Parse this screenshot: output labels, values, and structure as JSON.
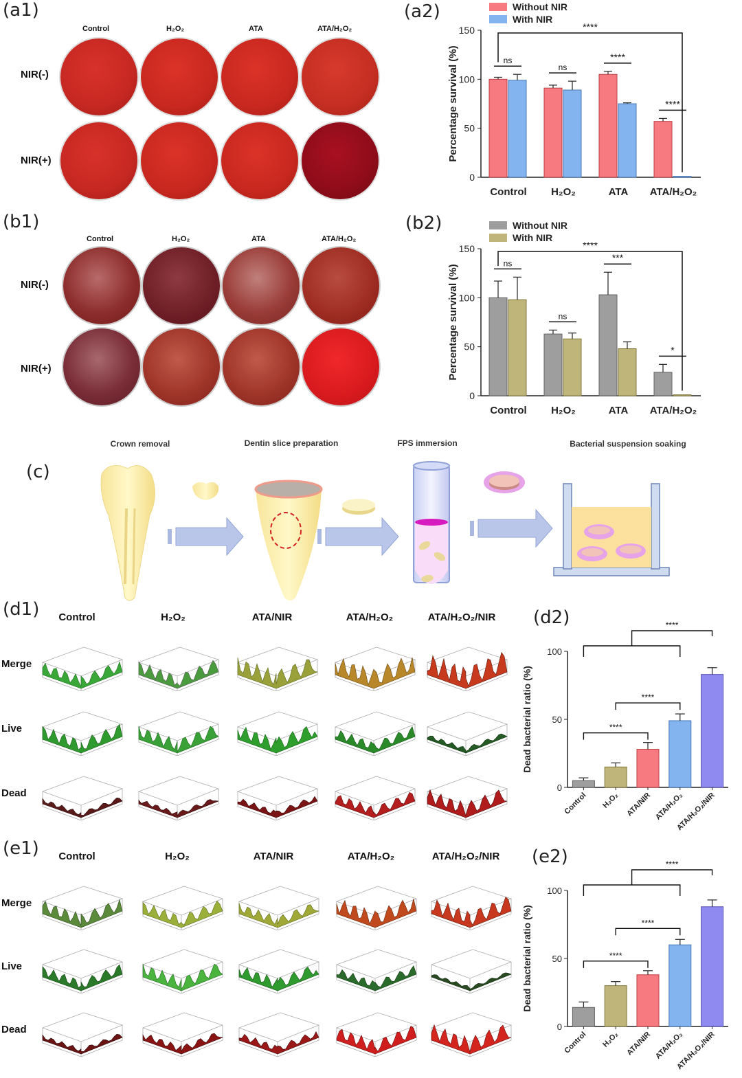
{
  "panels": {
    "a1": "(a1)",
    "a2": "(a2)",
    "b1": "(b1)",
    "b2": "(b2)",
    "c": "(c)",
    "d1": "(d1)",
    "d2": "(d2)",
    "e1": "(e1)",
    "e2": "(e2)"
  },
  "plates_a": {
    "columns": [
      "Control",
      "H₂O₂",
      "ATA",
      "ATA/H₂O₂"
    ],
    "rows": [
      "NIR(-)",
      "NIR(+)"
    ]
  },
  "plates_b": {
    "columns": [
      "Control",
      "H₂O₂",
      "ATA",
      "ATA/H₂O₂"
    ],
    "rows": [
      "NIR(-)",
      "NIR(+)"
    ]
  },
  "workflow": {
    "steps": [
      "Crown removal",
      "Dentin slice preparation",
      "FPS immersion",
      "Bacterial suspension soaking"
    ]
  },
  "surfaces_d": {
    "columns": [
      "Control",
      "H₂O₂",
      "ATA/NIR",
      "ATA/H₂O₂",
      "ATA/H₂O₂/NIR"
    ],
    "rows": [
      "Merge",
      "Live",
      "Dead"
    ]
  },
  "surfaces_e": {
    "columns": [
      "Control",
      "H₂O₂",
      "ATA/NIR",
      "ATA/H₂O₂",
      "ATA/H₂O₂/NIR"
    ],
    "rows": [
      "Merge",
      "Live",
      "Dead"
    ]
  },
  "chart_data": [
    {
      "id": "a2",
      "type": "bar",
      "categories": [
        "Control",
        "H₂O₂",
        "ATA",
        "ATA/H₂O₂"
      ],
      "series": [
        {
          "name": "Without NIR",
          "values": [
            100,
            91,
            105,
            57
          ],
          "errors": [
            2,
            3,
            3,
            3
          ],
          "color": "#f77a80"
        },
        {
          "name": "With NIR",
          "values": [
            99,
            89,
            75,
            1
          ],
          "errors": [
            6,
            9,
            1,
            0
          ],
          "color": "#84b4ef"
        }
      ],
      "ylabel": "Percentage survival (%)",
      "ylim": [
        0,
        150
      ],
      "yticks": [
        0,
        50,
        100,
        150
      ],
      "legend": "top-left",
      "significance": [
        {
          "label": "ns",
          "from": [
            0,
            0
          ],
          "to": [
            0,
            1
          ]
        },
        {
          "label": "ns",
          "from": [
            1,
            0
          ],
          "to": [
            1,
            1
          ]
        },
        {
          "label": "****",
          "from": [
            2,
            0
          ],
          "to": [
            2,
            1
          ]
        },
        {
          "label": "****",
          "from": [
            3,
            0
          ],
          "to": [
            3,
            1
          ]
        },
        {
          "label": "****",
          "from": [
            0,
            0
          ],
          "to": [
            3,
            1
          ]
        }
      ]
    },
    {
      "id": "b2",
      "type": "bar",
      "categories": [
        "Control",
        "H₂O₂",
        "ATA",
        "ATA/H₂O₂"
      ],
      "series": [
        {
          "name": "Without NIR",
          "values": [
            100,
            63,
            103,
            24
          ],
          "errors": [
            17,
            4,
            23,
            8
          ],
          "color": "#9e9e9e"
        },
        {
          "name": "With NIR",
          "values": [
            98,
            58,
            48,
            1
          ],
          "errors": [
            23,
            6,
            7,
            0
          ],
          "color": "#bfb57a"
        }
      ],
      "ylabel": "Percentage survival (%)",
      "ylim": [
        0,
        150
      ],
      "yticks": [
        0,
        50,
        100,
        150
      ],
      "legend": "top-left",
      "significance": [
        {
          "label": "ns",
          "from": [
            0,
            0
          ],
          "to": [
            0,
            1
          ]
        },
        {
          "label": "ns",
          "from": [
            1,
            0
          ],
          "to": [
            1,
            1
          ]
        },
        {
          "label": "***",
          "from": [
            2,
            0
          ],
          "to": [
            2,
            1
          ]
        },
        {
          "label": "*",
          "from": [
            3,
            0
          ],
          "to": [
            3,
            1
          ]
        },
        {
          "label": "****",
          "from": [
            0,
            0
          ],
          "to": [
            3,
            1
          ]
        }
      ]
    },
    {
      "id": "d2",
      "type": "bar",
      "categories": [
        "Control",
        "H₂O₂",
        "ATA/NIR",
        "ATA/H₂O₂",
        "ATA/H₂O₂/NIR"
      ],
      "values": [
        5,
        15,
        28,
        49,
        83
      ],
      "errors": [
        2,
        3,
        5,
        5,
        5
      ],
      "colors": [
        "#9e9e9e",
        "#bfb57a",
        "#f77a80",
        "#84b4ef",
        "#8f8af0"
      ],
      "ylabel": "Dead bacterial ratio (%)",
      "ylim": [
        0,
        100
      ],
      "yticks": [
        0,
        50,
        100
      ],
      "significance": [
        {
          "label": "****",
          "from": 0,
          "to": 2
        },
        {
          "label": "****",
          "from": 1,
          "to": 3
        },
        {
          "label": "****",
          "group": [
            0,
            3
          ],
          "to": 4
        }
      ]
    },
    {
      "id": "e2",
      "type": "bar",
      "categories": [
        "Control",
        "H₂O₂",
        "ATA/NIR",
        "ATA/H₂O₂",
        "ATA/H₂O₂/NIR"
      ],
      "values": [
        14,
        30,
        38,
        60,
        88
      ],
      "errors": [
        4,
        3,
        3,
        4,
        5
      ],
      "colors": [
        "#9e9e9e",
        "#bfb57a",
        "#f77a80",
        "#84b4ef",
        "#8f8af0"
      ],
      "ylabel": "Dead bacterial ratio (%)",
      "ylim": [
        0,
        100
      ],
      "yticks": [
        0,
        50,
        100
      ],
      "significance": [
        {
          "label": "****",
          "from": 0,
          "to": 2
        },
        {
          "label": "****",
          "from": 1,
          "to": 3
        },
        {
          "label": "****",
          "group": [
            0,
            3
          ],
          "to": 4
        }
      ]
    }
  ]
}
